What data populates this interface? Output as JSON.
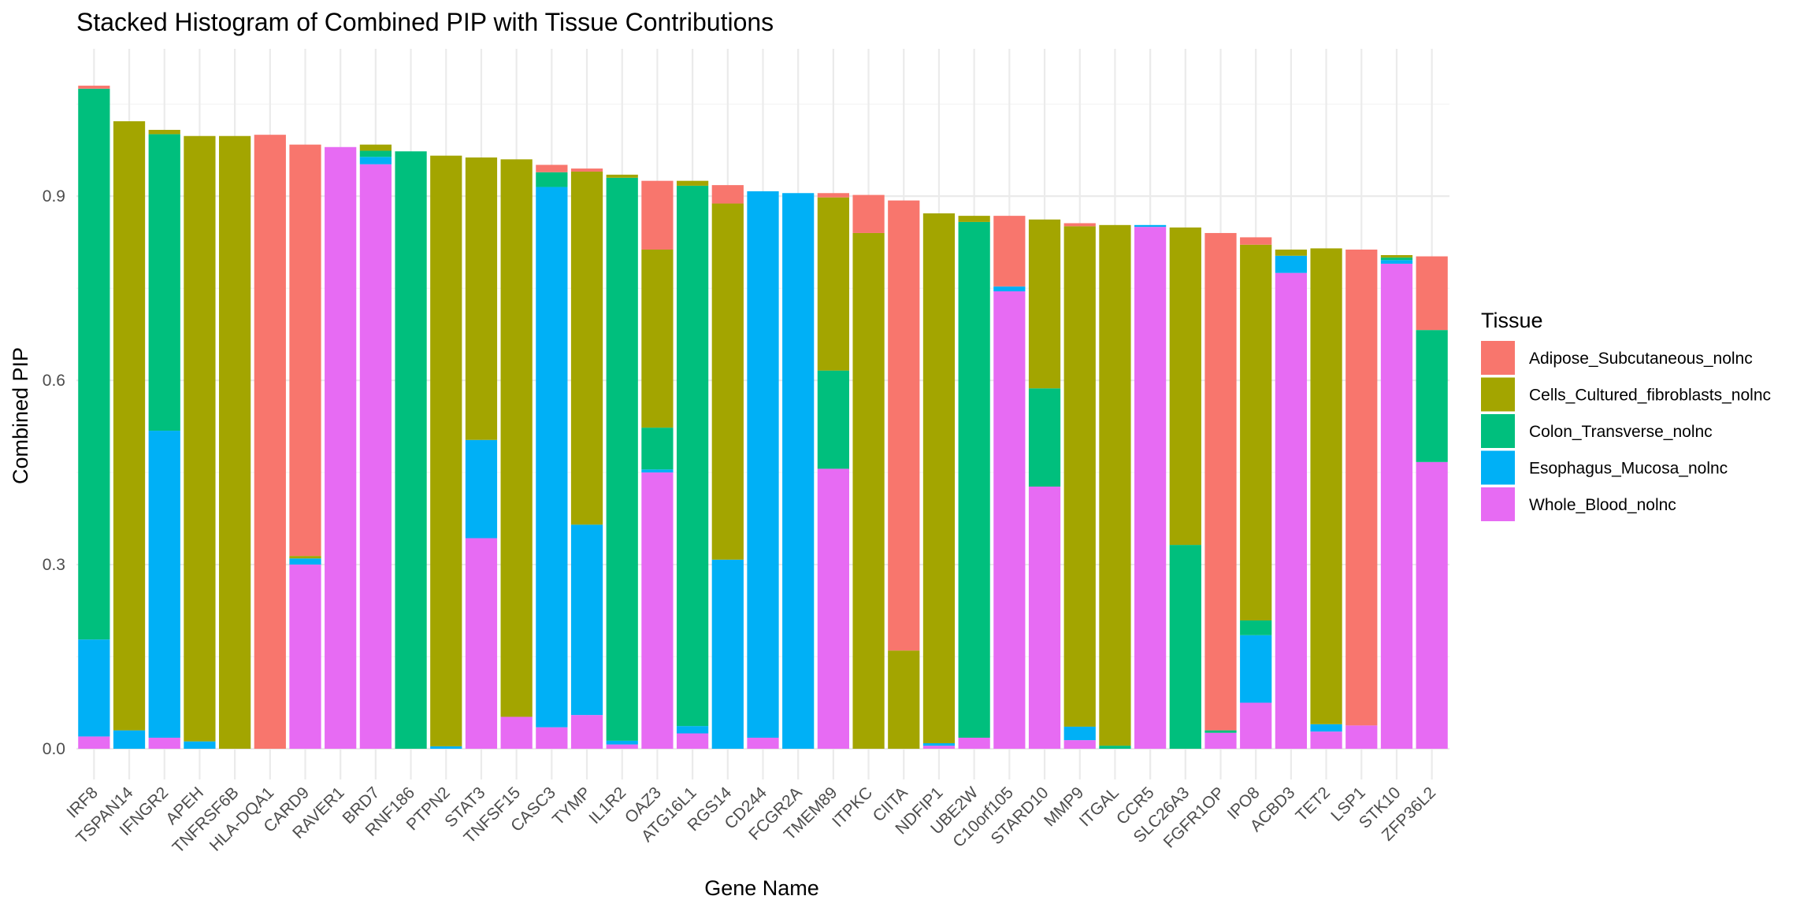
{
  "chart_data": {
    "type": "bar",
    "stacked": true,
    "title": "Stacked Histogram of Combined PIP with Tissue Contributions",
    "xlabel": "Gene Name",
    "ylabel": "Combined PIP",
    "ylim": [
      -0.05,
      1.14
    ],
    "yticks": [
      0.0,
      0.3,
      0.6,
      0.9
    ],
    "ytick_labels": [
      "0.0",
      "0.3",
      "0.6",
      "0.9"
    ],
    "grid": true,
    "legend_position": "right",
    "legend_title": "Tissue",
    "categories": [
      "IRF8",
      "TSPAN14",
      "IFNGR2",
      "APEH",
      "TNFRSF6B",
      "HLA-DQA1",
      "CARD9",
      "RAVER1",
      "BRD7",
      "RNF186",
      "PTPN2",
      "STAT3",
      "TNFSF15",
      "CASC3",
      "TYMP",
      "IL1R2",
      "OAZ3",
      "ATG16L1",
      "RGS14",
      "CD244",
      "FCGR2A",
      "TMEM89",
      "ITPKC",
      "CIITA",
      "NDFIP1",
      "UBE2W",
      "C10orf105",
      "STARD10",
      "MMP9",
      "ITGAL",
      "CCR5",
      "SLC26A3",
      "FGFR1OP",
      "IPO8",
      "ACBD3",
      "TET2",
      "LSP1",
      "STK10",
      "ZFP36L2"
    ],
    "series": [
      {
        "name": "Whole_Blood_nolnc",
        "color": "#E76BF3",
        "values": [
          0.02,
          0.0,
          0.018,
          0.0,
          0.0,
          0.0,
          0.3,
          0.98,
          0.952,
          0.0,
          0.0,
          0.343,
          0.052,
          0.035,
          0.055,
          0.007,
          0.45,
          0.025,
          0.0,
          0.018,
          0.0,
          0.456,
          0.0,
          0.0,
          0.005,
          0.018,
          0.745,
          0.427,
          0.014,
          0.0,
          0.85,
          0.0,
          0.026,
          0.075,
          0.775,
          0.028,
          0.038,
          0.79,
          0.467
        ]
      },
      {
        "name": "Esophagus_Mucosa_nolnc",
        "color": "#00B0F6",
        "values": [
          0.158,
          0.03,
          0.5,
          0.012,
          0.0,
          0.0,
          0.01,
          0.0,
          0.012,
          0.0,
          0.004,
          0.16,
          0.0,
          0.88,
          0.31,
          0.006,
          0.005,
          0.012,
          0.308,
          0.89,
          0.905,
          0.0,
          0.0,
          0.0,
          0.004,
          0.0,
          0.008,
          0.0,
          0.022,
          0.0,
          0.003,
          0.0,
          0.0,
          0.11,
          0.028,
          0.012,
          0.0,
          0.006,
          0.0
        ]
      },
      {
        "name": "Colon_Transverse_nolnc",
        "color": "#00BF7D",
        "values": [
          0.897,
          0.0,
          0.483,
          0.0,
          0.0,
          0.0,
          0.0,
          0.0,
          0.01,
          0.973,
          0.0,
          0.0,
          0.0,
          0.024,
          0.0,
          0.917,
          0.068,
          0.88,
          0.0,
          0.0,
          0.0,
          0.16,
          0.0,
          0.0,
          0.0,
          0.84,
          0.0,
          0.16,
          0.0,
          0.005,
          0.0,
          0.332,
          0.004,
          0.024,
          0.0,
          0.0,
          0.0,
          0.004,
          0.215
        ]
      },
      {
        "name": "Cells_Cultured_fibroblasts_nolnc",
        "color": "#A3A500",
        "values": [
          0.0,
          0.992,
          0.007,
          0.986,
          0.998,
          0.0,
          0.004,
          0.0,
          0.01,
          0.0,
          0.962,
          0.46,
          0.908,
          0.0,
          0.575,
          0.005,
          0.29,
          0.008,
          0.58,
          0.0,
          0.0,
          0.282,
          0.84,
          0.16,
          0.863,
          0.01,
          0.0,
          0.275,
          0.815,
          0.848,
          0.0,
          0.517,
          0.0,
          0.612,
          0.01,
          0.775,
          0.0,
          0.004,
          0.0
        ]
      },
      {
        "name": "Adipose_Subcutaneous_nolnc",
        "color": "#F8766D",
        "values": [
          0.005,
          0.0,
          0.0,
          0.0,
          0.0,
          1.0,
          0.67,
          0.0,
          0.0,
          0.0,
          0.0,
          0.0,
          0.0,
          0.012,
          0.005,
          0.0,
          0.112,
          0.0,
          0.03,
          0.0,
          0.0,
          0.007,
          0.062,
          0.733,
          0.0,
          0.0,
          0.115,
          0.0,
          0.005,
          0.0,
          0.0,
          0.0,
          0.81,
          0.012,
          0.0,
          0.0,
          0.775,
          0.0,
          0.12
        ]
      }
    ],
    "legend_order": [
      "Adipose_Subcutaneous_nolnc",
      "Cells_Cultured_fibroblasts_nolnc",
      "Colon_Transverse_nolnc",
      "Esophagus_Mucosa_nolnc",
      "Whole_Blood_nolnc"
    ]
  }
}
